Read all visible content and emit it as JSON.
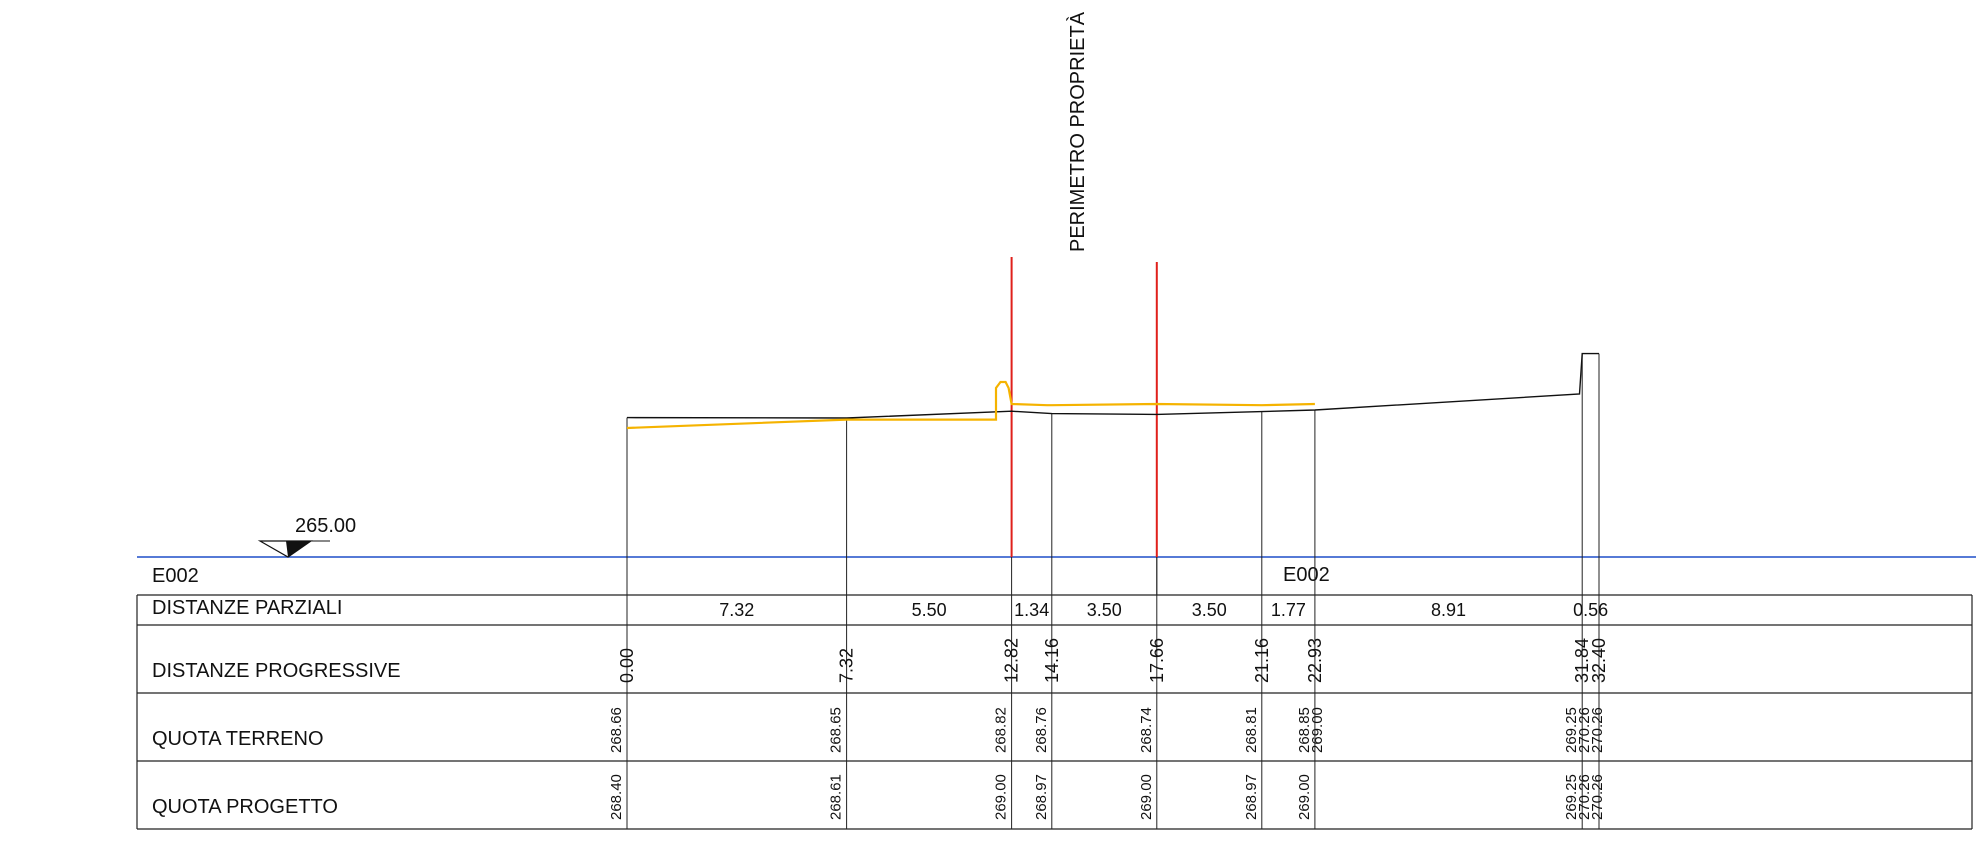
{
  "section_id": "E002",
  "centre_marker": "E002",
  "datum_value": "265.00",
  "perimeter_label": "PERIMETRO PROPRIETÀ",
  "rows": {
    "parziali": "DISTANZE PARZIALI",
    "progressive": "DISTANZE PROGRESSIVE",
    "terreno": "QUOTA TERRENO",
    "progetto": "QUOTA PROGETTO"
  },
  "partial_distances": [
    {
      "from": 0.0,
      "to": 7.32,
      "label": "7.32"
    },
    {
      "from": 7.32,
      "to": 12.82,
      "label": "5.50"
    },
    {
      "from": 12.82,
      "to": 14.16,
      "label": "1.34"
    },
    {
      "from": 14.16,
      "to": 17.66,
      "label": "3.50"
    },
    {
      "from": 17.66,
      "to": 21.16,
      "label": "3.50"
    },
    {
      "from": 21.16,
      "to": 22.93,
      "label": "1.77"
    },
    {
      "from": 22.93,
      "to": 31.84,
      "label": "8.91"
    },
    {
      "from": 31.84,
      "to": 32.4,
      "label": "0.56"
    }
  ],
  "stations": [
    {
      "d": 0.0,
      "progressive": "0.00",
      "terreno": [
        "268.66"
      ],
      "progetto": [
        "268.40"
      ]
    },
    {
      "d": 7.32,
      "progressive": "7.32",
      "terreno": [
        "268.65"
      ],
      "progetto": [
        "268.61"
      ]
    },
    {
      "d": 12.82,
      "progressive": "12.82",
      "terreno": [
        "268.82"
      ],
      "progetto": [
        "269.00"
      ]
    },
    {
      "d": 14.16,
      "progressive": "14.16",
      "terreno": [
        "268.76"
      ],
      "progetto": [
        "268.97"
      ]
    },
    {
      "d": 17.66,
      "progressive": "17.66",
      "terreno": [
        "268.74"
      ],
      "progetto": [
        "269.00"
      ]
    },
    {
      "d": 21.16,
      "progressive": "21.16",
      "terreno": [
        "268.81"
      ],
      "progetto": [
        "268.97"
      ]
    },
    {
      "d": 22.93,
      "progressive": "22.93",
      "terreno": [
        "268.85",
        "269.00"
      ],
      "progetto": [
        "269.00"
      ]
    },
    {
      "d": 31.84,
      "progressive": "31.84",
      "terreno": [
        "269.25",
        "270.26",
        "270.26"
      ],
      "progetto": [
        "269.25",
        "270.26",
        "270.26"
      ]
    },
    {
      "d": 32.4,
      "progressive": "32.40",
      "terreno": [],
      "progetto": []
    }
  ],
  "terrain_profile": [
    [
      0.0,
      268.66
    ],
    [
      7.32,
      268.65
    ],
    [
      12.82,
      268.82
    ],
    [
      14.16,
      268.76
    ],
    [
      17.66,
      268.74
    ],
    [
      21.16,
      268.81
    ],
    [
      22.93,
      268.85
    ],
    [
      31.75,
      269.25
    ],
    [
      31.84,
      270.26
    ],
    [
      32.4,
      270.26
    ]
  ],
  "project_profile": [
    [
      0.0,
      268.4
    ],
    [
      7.32,
      268.61
    ],
    [
      12.3,
      268.61
    ],
    [
      12.3,
      269.4
    ],
    [
      12.45,
      269.55
    ],
    [
      12.62,
      269.55
    ],
    [
      12.72,
      269.4
    ],
    [
      12.82,
      269.0
    ],
    [
      14.0,
      268.97
    ],
    [
      14.16,
      268.97
    ],
    [
      17.66,
      269.0
    ],
    [
      21.16,
      268.97
    ],
    [
      22.93,
      269.0
    ]
  ],
  "red_markers": [
    12.82,
    17.66
  ],
  "colors": {
    "terrain": "#111111",
    "project": "#F5B300",
    "marker": "#E0201B",
    "datum_line": "#1F4FC9",
    "grid": "#222222"
  }
}
